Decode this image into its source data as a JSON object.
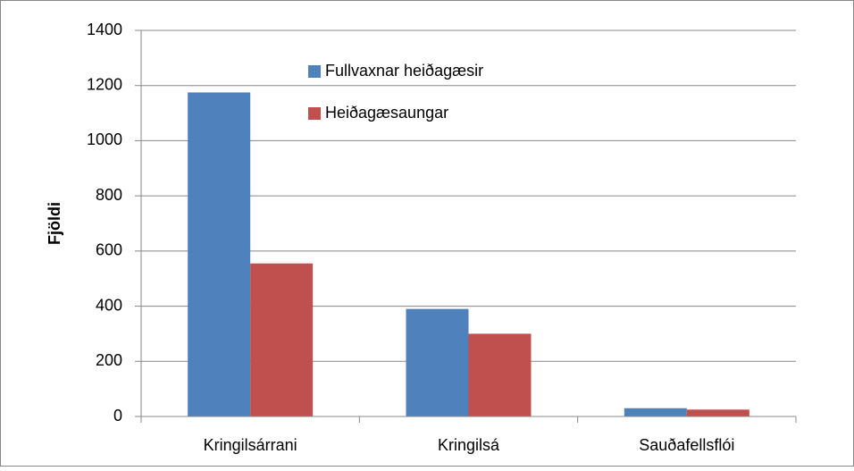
{
  "chart_data": {
    "type": "bar",
    "categories": [
      "Kringilsárrani",
      "Kringilsá",
      "Sauðafellsflói"
    ],
    "series": [
      {
        "name": "Fullvaxnar heiðagæsir",
        "color": "#4f81bd",
        "values": [
          1175,
          390,
          30
        ]
      },
      {
        "name": "Heiðagæsaungar",
        "color": "#c0504d",
        "values": [
          555,
          300,
          25
        ]
      }
    ],
    "ylabel": "Fjöldi",
    "ylim": [
      0,
      1400
    ],
    "yticks": [
      0,
      200,
      400,
      600,
      800,
      1000,
      1200,
      1400
    ],
    "grid": true,
    "legend": "top"
  }
}
